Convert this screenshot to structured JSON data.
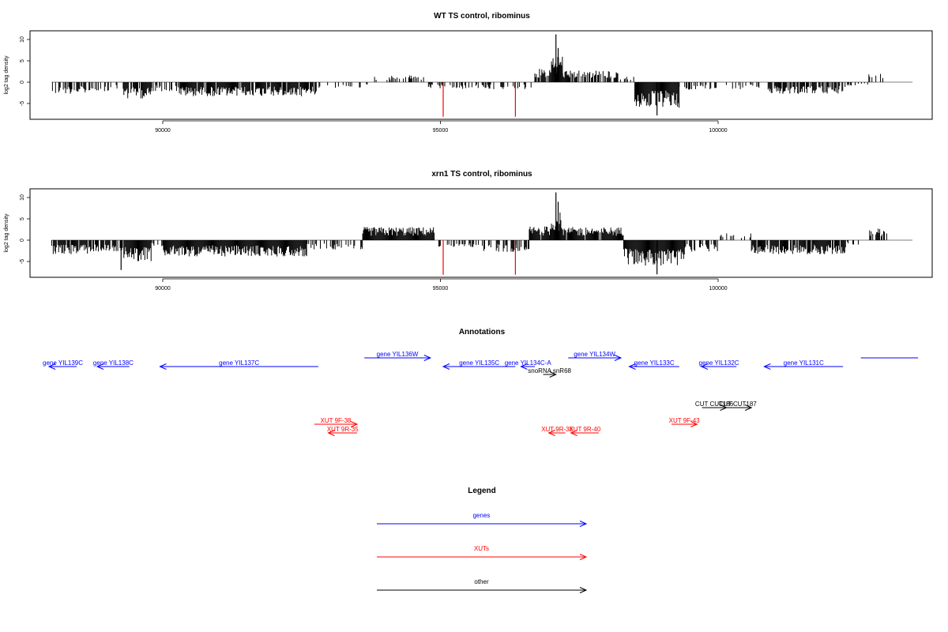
{
  "colors": {
    "gene": "#0000ff",
    "xut": "#ff0000",
    "other": "#000000",
    "mark": "#ff0000",
    "bars": "#000000"
  },
  "chart_data": [
    {
      "type": "bar",
      "title": "WT TS control, ribominus",
      "ylabel": "log2 tag density",
      "xlim": [
        88000,
        103500
      ],
      "ylim": [
        -8,
        12
      ],
      "xticks": [
        "90000",
        "95000",
        "100000"
      ],
      "yticks": [
        "10",
        "5",
        "0",
        "-5"
      ],
      "red_marks": [
        95050,
        96350
      ],
      "series": [
        {
          "x0": 88000,
          "x1": 88700,
          "amp": -2.5,
          "dense": 0.6
        },
        {
          "x0": 88700,
          "x1": 89300,
          "amp": -2.0,
          "dense": 0.4
        },
        {
          "x0": 89300,
          "x1": 89800,
          "amp": -3.5,
          "dense": 0.8
        },
        {
          "x0": 89800,
          "x1": 90300,
          "amp": -2.0,
          "dense": 0.5
        },
        {
          "x0": 90300,
          "x1": 92800,
          "amp": -3.0,
          "dense": 0.9
        },
        {
          "x0": 92800,
          "x1": 93800,
          "amp": -1.2,
          "dense": 0.25
        },
        {
          "x0": 93800,
          "x1": 94700,
          "amp": 1.5,
          "dense": 0.3
        },
        {
          "x0": 94700,
          "x1": 96700,
          "amp": -1.5,
          "dense": 0.35
        },
        {
          "x0": 96700,
          "x1": 97000,
          "amp": 3.0,
          "dense": 0.8
        },
        {
          "x0": 97000,
          "x1": 97200,
          "amp": 6.0,
          "dense": 1.0
        },
        {
          "x0": 97200,
          "x1": 98200,
          "amp": 2.5,
          "dense": 0.7
        },
        {
          "x0": 98200,
          "x1": 98500,
          "amp": 1.2,
          "dense": 0.4
        },
        {
          "x0": 98500,
          "x1": 99300,
          "amp": -5.5,
          "dense": 1.0
        },
        {
          "x0": 99300,
          "x1": 99700,
          "amp": -2.0,
          "dense": 0.4
        },
        {
          "x0": 99700,
          "x1": 100900,
          "amp": -1.5,
          "dense": 0.35
        },
        {
          "x0": 100900,
          "x1": 102300,
          "amp": -2.5,
          "dense": 0.75
        },
        {
          "x0": 102300,
          "x1": 102700,
          "amp": -0.8,
          "dense": 0.2
        },
        {
          "x0": 102700,
          "x1": 103050,
          "amp": 1.8,
          "dense": 0.3
        }
      ],
      "spikes": [
        {
          "x": 97080,
          "y": 11.2
        },
        {
          "x": 97120,
          "y": 8.0
        },
        {
          "x": 98900,
          "y": -7.8
        }
      ]
    },
    {
      "type": "bar",
      "title": "xrn1 TS control, ribominus",
      "ylabel": "log2 tag density",
      "xlim": [
        88000,
        103500
      ],
      "ylim": [
        -8,
        12
      ],
      "xticks": [
        "90000",
        "95000",
        "100000"
      ],
      "yticks": [
        "10",
        "5",
        "0",
        "-5"
      ],
      "red_marks": [
        95050,
        96350
      ],
      "series": [
        {
          "x0": 88000,
          "x1": 88700,
          "amp": -3.0,
          "dense": 0.8
        },
        {
          "x0": 88700,
          "x1": 89300,
          "amp": -2.5,
          "dense": 0.8
        },
        {
          "x0": 89300,
          "x1": 89800,
          "amp": -4.5,
          "dense": 1.0
        },
        {
          "x0": 89800,
          "x1": 90000,
          "amp": -1.5,
          "dense": 0.3
        },
        {
          "x0": 90000,
          "x1": 92600,
          "amp": -3.5,
          "dense": 1.0
        },
        {
          "x0": 92600,
          "x1": 93600,
          "amp": -2.0,
          "dense": 0.4
        },
        {
          "x0": 93600,
          "x1": 94900,
          "amp": 2.8,
          "dense": 1.0
        },
        {
          "x0": 94900,
          "x1": 95600,
          "amp": -1.5,
          "dense": 0.35
        },
        {
          "x0": 95600,
          "x1": 96600,
          "amp": -2.5,
          "dense": 0.6
        },
        {
          "x0": 96600,
          "x1": 97000,
          "amp": 3.0,
          "dense": 0.9
        },
        {
          "x0": 97000,
          "x1": 97200,
          "amp": 6.0,
          "dense": 1.0
        },
        {
          "x0": 97200,
          "x1": 98300,
          "amp": 2.8,
          "dense": 0.95
        },
        {
          "x0": 98300,
          "x1": 99400,
          "amp": -5.5,
          "dense": 1.0
        },
        {
          "x0": 99400,
          "x1": 100000,
          "amp": -2.5,
          "dense": 0.6
        },
        {
          "x0": 100000,
          "x1": 100600,
          "amp": 1.5,
          "dense": 0.3
        },
        {
          "x0": 100600,
          "x1": 102300,
          "amp": -3.0,
          "dense": 0.9
        },
        {
          "x0": 102300,
          "x1": 102700,
          "amp": -1.0,
          "dense": 0.2
        },
        {
          "x0": 102700,
          "x1": 103050,
          "amp": 2.5,
          "dense": 0.6
        }
      ],
      "spikes": [
        {
          "x": 97080,
          "y": 11.2
        },
        {
          "x": 97120,
          "y": 9.0
        },
        {
          "x": 98900,
          "y": -8.0
        },
        {
          "x": 89250,
          "y": -7.0
        }
      ]
    }
  ],
  "annotations": {
    "title": "Annotations",
    "features": [
      {
        "label": "gene YIL139C",
        "kind": "gene",
        "x0": 87700,
        "x1": 88450,
        "strand": "-",
        "row": 1
      },
      {
        "label": "gene YIL138C",
        "kind": "gene",
        "x0": 88820,
        "x1": 89400,
        "strand": "-",
        "row": 1
      },
      {
        "label": "gene YIL137C",
        "kind": "gene",
        "x0": 89950,
        "x1": 92800,
        "strand": "-",
        "row": 1
      },
      {
        "label": "gene YIL136W",
        "kind": "gene",
        "x0": 93630,
        "x1": 94820,
        "strand": "+",
        "row": 0
      },
      {
        "label": "gene YIL135C",
        "kind": "gene",
        "x0": 95050,
        "x1": 96350,
        "strand": "-",
        "row": 1
      },
      {
        "label": "gene YIL134C-A",
        "kind": "gene",
        "x0": 96450,
        "x1": 96700,
        "strand": "-",
        "row": 1
      },
      {
        "label": "gene YIL134W",
        "kind": "gene",
        "x0": 97300,
        "x1": 98250,
        "strand": "+",
        "row": 0
      },
      {
        "label": "gene YIL133C",
        "kind": "gene",
        "x0": 98400,
        "x1": 99300,
        "strand": "-",
        "row": 1
      },
      {
        "label": "gene YIL132C",
        "kind": "gene",
        "x0": 99700,
        "x1": 100330,
        "strand": "-",
        "row": 1
      },
      {
        "label": "gene YIL131C",
        "kind": "gene",
        "x0": 100830,
        "x1": 102250,
        "strand": "-",
        "row": 1
      },
      {
        "label": "snoRNA snR68",
        "kind": "other",
        "x0": 96850,
        "x1": 97080,
        "strand": "+",
        "row": 2
      },
      {
        "label": "CUT CUT186",
        "kind": "other",
        "x0": 99710,
        "x1": 100150,
        "strand": "+",
        "row": 3
      },
      {
        "label": "CUT CUT187",
        "kind": "other",
        "x0": 100100,
        "x1": 100600,
        "strand": "+",
        "row": 3
      },
      {
        "label": "XUT 9F-38",
        "kind": "xut",
        "x0": 92730,
        "x1": 93500,
        "strand": "+",
        "row": 4
      },
      {
        "label": "XUT 9R-35",
        "kind": "xut",
        "x0": 92980,
        "x1": 93500,
        "strand": "-",
        "row": 5
      },
      {
        "label": "XUT 9R-38",
        "kind": "xut",
        "x0": 96950,
        "x1": 97250,
        "strand": "-",
        "row": 5
      },
      {
        "label": "XUT 9R-40",
        "kind": "xut",
        "x0": 97350,
        "x1": 97850,
        "strand": "-",
        "row": 5
      },
      {
        "label": "XUT 9F-43",
        "kind": "xut",
        "x0": 99160,
        "x1": 99620,
        "strand": "+",
        "row": 4
      },
      {
        "label": "",
        "kind": "gene",
        "x0": 102570,
        "x1": 103600,
        "strand": "none",
        "row": 0
      }
    ]
  },
  "legend": {
    "title": "Legend",
    "items": [
      {
        "label": "genes",
        "kind": "gene"
      },
      {
        "label": "XUTs",
        "kind": "xut"
      },
      {
        "label": "other",
        "kind": "other"
      }
    ]
  }
}
